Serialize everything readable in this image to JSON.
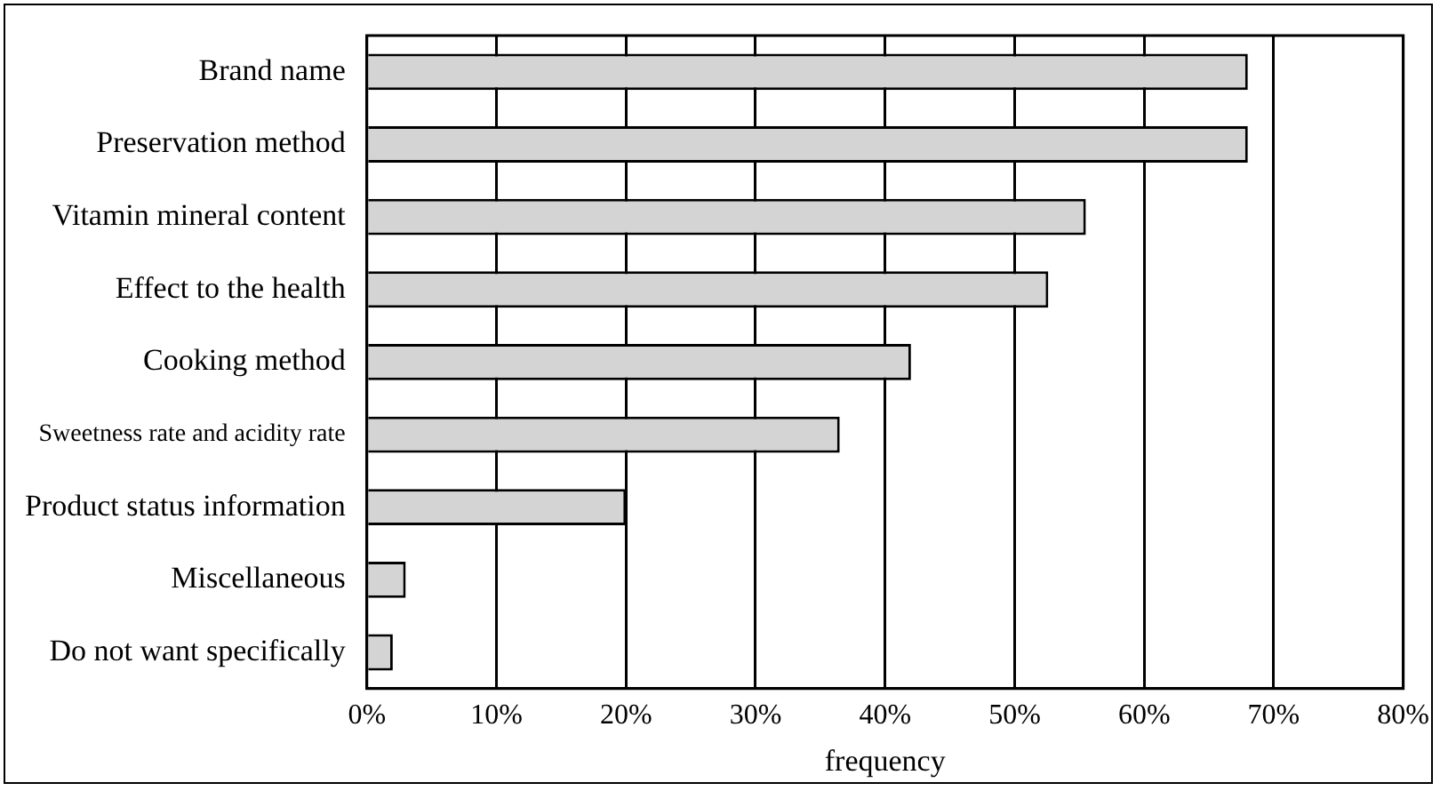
{
  "chart_data": {
    "type": "bar",
    "orientation": "horizontal",
    "xlabel": "frequency",
    "categories": [
      "Brand name",
      "Preservation method",
      "Vitamin mineral content",
      "Effect to the health",
      "Cooking method",
      "Sweetness rate and acidity rate",
      "Product status information",
      "Miscellaneous",
      "Do not want specifically"
    ],
    "values": [
      68,
      68,
      55.5,
      52.6,
      42,
      36.5,
      20,
      3,
      2
    ],
    "color": "#d4d4d4",
    "xlim": [
      0,
      80
    ],
    "xticks": [
      {
        "value": 0,
        "label": "0%"
      },
      {
        "value": 10,
        "label": "10%"
      },
      {
        "value": 20,
        "label": "20%"
      },
      {
        "value": 30,
        "label": "30%"
      },
      {
        "value": 40,
        "label": "40%"
      },
      {
        "value": 50,
        "label": "50%"
      },
      {
        "value": 60,
        "label": "60%"
      },
      {
        "value": 70,
        "label": "70%"
      },
      {
        "value": 80,
        "label": "80%"
      }
    ],
    "grid": "x",
    "legend": false
  }
}
